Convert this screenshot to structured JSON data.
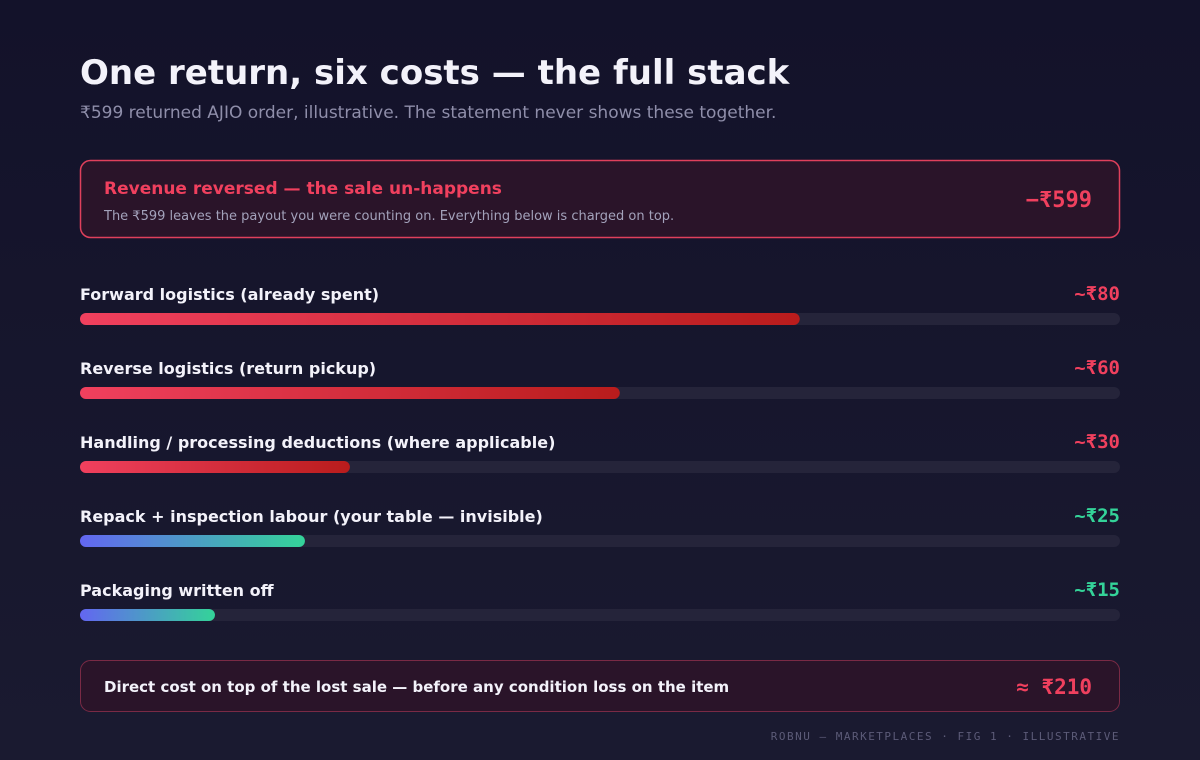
{
  "chart_data": {
    "type": "bar",
    "title": "One return, six costs — the full stack",
    "subtitle": "₹599 returned AJIO order, illustrative. The statement never shows these together.",
    "callout": {
      "label": "Revenue reversed — the sale un-happens",
      "text": "The ₹599 leaves the payout you were counting on. Everything below is charged on top.",
      "value_label": "−₹599"
    },
    "categories": [
      "Forward logistics (already spent)",
      "Reverse logistics (return pickup)",
      "Handling / processing deductions (where applicable)",
      "Repack + inspection labour (your table — invisible)",
      "Packaging written off"
    ],
    "values": [
      80,
      60,
      30,
      25,
      15
    ],
    "value_labels": [
      "~₹80",
      "~₹60",
      "~₹30",
      "~₹25",
      "~₹15"
    ],
    "bar_gradients": [
      [
        "#f0405e",
        "#b91c1c"
      ],
      [
        "#f0405e",
        "#b91c1c"
      ],
      [
        "#f0405e",
        "#b91c1c"
      ],
      [
        "#6366f1",
        "#34d399"
      ],
      [
        "#6366f1",
        "#34d399"
      ]
    ],
    "label_colors": [
      "#f0405e",
      "#f0405e",
      "#f0405e",
      "#34d399",
      "#34d399"
    ],
    "xlim": [
      0,
      115.6
    ],
    "total": {
      "label": "Direct cost on top of the lost sale — before any condition loss on the item",
      "value_label": "≈ ₹210"
    },
    "footer": "ROBNU — MARKETPLACES · FIG 1 · ILLUSTRATIVE"
  }
}
